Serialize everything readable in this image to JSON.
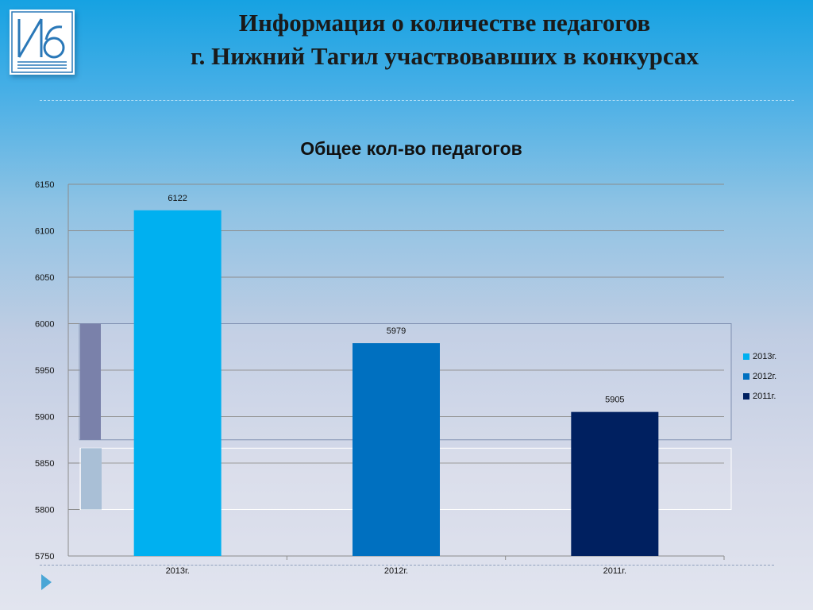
{
  "slide": {
    "title_line1": "Информация о количестве педагогов",
    "title_line2": "г. Нижний Тагил участвовавших в конкурсах"
  },
  "logo": {
    "icon": "ido-logo-icon",
    "text": "ИДО"
  },
  "chart_data": {
    "type": "bar",
    "title": "Общее кол-во педагогов",
    "categories": [
      "2013г.",
      "2012г.",
      "2011г."
    ],
    "values": [
      6122,
      5979,
      5905
    ],
    "colors": [
      "#00b0f0",
      "#0070c0",
      "#002060"
    ],
    "data_labels": [
      "6122",
      "5979",
      "5905"
    ],
    "ylim": [
      5750,
      6150
    ],
    "yticks": [
      5750,
      5800,
      5850,
      5900,
      5950,
      6000,
      6050,
      6100,
      6150
    ],
    "grid": true,
    "legend_position": "right",
    "legend": [
      {
        "label": "2013г.",
        "color": "#00b0f0"
      },
      {
        "label": "2012г.",
        "color": "#0070c0"
      },
      {
        "label": "2011г.",
        "color": "#002060"
      }
    ]
  }
}
